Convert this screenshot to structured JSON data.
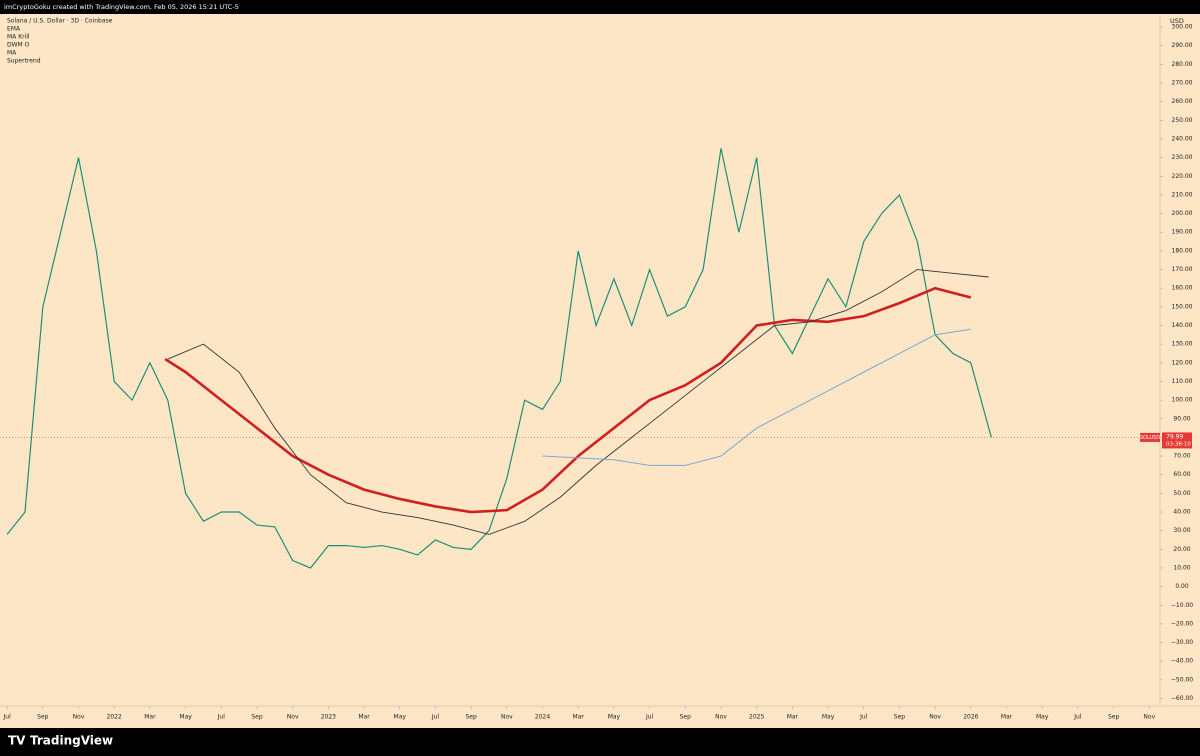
{
  "header": {
    "caption": "imCryptoGoku created with TradingView.com, Feb 05, 2026 15:21 UTC-5",
    "brand": "TradingView"
  },
  "chart_data": {
    "type": "line",
    "title": "Solana / U.S. Dollar · 3D · Coinbase",
    "indicators": [
      "EMA",
      "MA Krill",
      "DWM O",
      "MA",
      "Supertrend"
    ],
    "y_axis_label": "USD",
    "symbol": "SOLUSD",
    "last_price": 79.99,
    "countdown": "03:38:10",
    "xlim": [
      -0.4,
      64.6
    ],
    "xticks": [
      {
        "value": 0,
        "label": "Jul"
      },
      {
        "value": 2,
        "label": "Sep"
      },
      {
        "value": 4,
        "label": "Nov"
      },
      {
        "value": 6,
        "label": "2022"
      },
      {
        "value": 8,
        "label": "Mar"
      },
      {
        "value": 10,
        "label": "May"
      },
      {
        "value": 12,
        "label": "Jul"
      },
      {
        "value": 14,
        "label": "Sep"
      },
      {
        "value": 16,
        "label": "Nov"
      },
      {
        "value": 18,
        "label": "2023"
      },
      {
        "value": 20,
        "label": "Mar"
      },
      {
        "value": 22,
        "label": "May"
      },
      {
        "value": 24,
        "label": "Jul"
      },
      {
        "value": 26,
        "label": "Sep"
      },
      {
        "value": 28,
        "label": "Nov"
      },
      {
        "value": 30,
        "label": "2024"
      },
      {
        "value": 32,
        "label": "Mar"
      },
      {
        "value": 34,
        "label": "May"
      },
      {
        "value": 36,
        "label": "Jul"
      },
      {
        "value": 38,
        "label": "Sep"
      },
      {
        "value": 40,
        "label": "Nov"
      },
      {
        "value": 42,
        "label": "2025"
      },
      {
        "value": 44,
        "label": "Mar"
      },
      {
        "value": 46,
        "label": "May"
      },
      {
        "value": 48,
        "label": "Jul"
      },
      {
        "value": 50,
        "label": "Sep"
      },
      {
        "value": 52,
        "label": "Nov"
      },
      {
        "value": 54,
        "label": "2026"
      },
      {
        "value": 56,
        "label": "Mar"
      },
      {
        "value": 58,
        "label": "May"
      },
      {
        "value": 60,
        "label": "Jul"
      },
      {
        "value": 62,
        "label": "Sep"
      },
      {
        "value": 64,
        "label": "Nov"
      }
    ],
    "ylim": [
      -64,
      307
    ],
    "yticks": [
      {
        "value": 300,
        "label": "300.00"
      },
      {
        "value": 290,
        "label": "290.00"
      },
      {
        "value": 280,
        "label": "280.00"
      },
      {
        "value": 270,
        "label": "270.00"
      },
      {
        "value": 260,
        "label": "260.00"
      },
      {
        "value": 250,
        "label": "250.00"
      },
      {
        "value": 240,
        "label": "240.00"
      },
      {
        "value": 230,
        "label": "230.00"
      },
      {
        "value": 220,
        "label": "220.00"
      },
      {
        "value": 210,
        "label": "210.00"
      },
      {
        "value": 200,
        "label": "200.00"
      },
      {
        "value": 190,
        "label": "190.00"
      },
      {
        "value": 180,
        "label": "180.00"
      },
      {
        "value": 170,
        "label": "170.00"
      },
      {
        "value": 160,
        "label": "160.00"
      },
      {
        "value": 150,
        "label": "150.00"
      },
      {
        "value": 140,
        "label": "140.00"
      },
      {
        "value": 130,
        "label": "130.00"
      },
      {
        "value": 120,
        "label": "120.00"
      },
      {
        "value": 110,
        "label": "110.00"
      },
      {
        "value": 100,
        "label": "100.00"
      },
      {
        "value": 90,
        "label": "90.00"
      },
      {
        "value": 80,
        "label": "80.00"
      },
      {
        "value": 70,
        "label": "70.00"
      },
      {
        "value": 60,
        "label": "60.00"
      },
      {
        "value": 50,
        "label": "50.00"
      },
      {
        "value": 40,
        "label": "40.00"
      },
      {
        "value": 30,
        "label": "30.00"
      },
      {
        "value": 20,
        "label": "20.00"
      },
      {
        "value": 10,
        "label": "10.00"
      },
      {
        "value": 0,
        "label": "0.00"
      },
      {
        "value": -10,
        "label": "−10.00"
      },
      {
        "value": -20,
        "label": "−20.00"
      },
      {
        "value": -30,
        "label": "−30.00"
      },
      {
        "value": -40,
        "label": "−40.00"
      },
      {
        "value": -50,
        "label": "−50.00"
      },
      {
        "value": -60,
        "label": "−60.00"
      }
    ],
    "lines": [
      {
        "color": "#1f8f78",
        "width": 1.2,
        "x": [
          0,
          1,
          2,
          3,
          4,
          5,
          6,
          7,
          8,
          9,
          10,
          11,
          12,
          13,
          14,
          15,
          16,
          17,
          18,
          19,
          20,
          21,
          22,
          23,
          24,
          25,
          26,
          27,
          28,
          29,
          30,
          31,
          32,
          33,
          34,
          35,
          36,
          37,
          38,
          39,
          40,
          41,
          42,
          43,
          44,
          45,
          46,
          47,
          48,
          49,
          50,
          51,
          52,
          53,
          54,
          55.15
        ],
        "values": [
          28,
          40,
          150,
          190,
          230,
          180,
          110,
          100,
          120,
          100,
          50,
          35,
          40,
          40,
          33,
          32,
          14,
          10,
          22,
          22,
          21,
          22,
          20,
          17,
          25,
          21,
          20,
          30,
          58,
          100,
          95,
          110,
          180,
          140,
          165,
          140,
          170,
          145,
          150,
          170,
          235,
          190,
          230,
          140,
          125,
          145,
          165,
          150,
          185,
          200,
          210,
          185,
          135,
          125,
          120,
          80
        ]
      },
      {
        "color": "#d11f1f",
        "width": 2.6,
        "x": [
          8.85,
          10,
          12,
          14,
          16,
          18,
          20,
          22,
          24,
          26,
          28,
          30,
          32,
          34,
          36,
          38,
          40,
          42,
          44,
          46,
          48,
          50,
          52,
          54
        ],
        "values": [
          122,
          115,
          100,
          85,
          70,
          60,
          52,
          47,
          43,
          40,
          41,
          52,
          70,
          85,
          100,
          108,
          120,
          140,
          143,
          142,
          145,
          152,
          160,
          155
        ]
      },
      {
        "color": "#333333",
        "width": 0.9,
        "x": [
          9,
          11,
          13,
          15,
          17,
          19,
          21,
          23,
          25,
          27,
          29,
          31,
          33,
          35,
          37,
          39,
          41,
          43,
          45,
          47,
          49,
          51,
          53,
          55
        ],
        "values": [
          122,
          130,
          115,
          85,
          60,
          45,
          40,
          37,
          33,
          28,
          35,
          48,
          65,
          80,
          95,
          110,
          125,
          140,
          142,
          148,
          158,
          170,
          168,
          166
        ]
      },
      {
        "color": "#7ea6d1",
        "width": 1,
        "x": [
          30,
          32,
          34,
          36,
          38,
          40,
          42,
          44,
          46,
          48,
          50,
          52,
          54
        ],
        "values": [
          70,
          69,
          68,
          65,
          65,
          70,
          85,
          95,
          105,
          115,
          125,
          135,
          138
        ]
      }
    ]
  }
}
